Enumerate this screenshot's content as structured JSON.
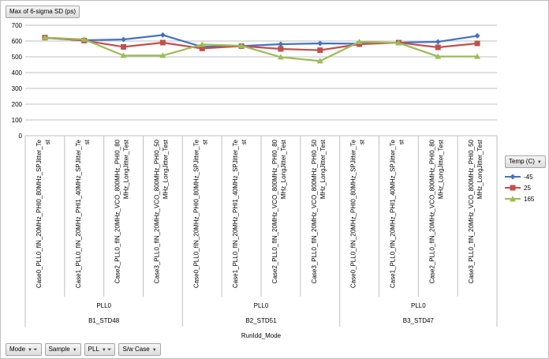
{
  "value_button": {
    "label": "Max of 6-sigma SD (ps)"
  },
  "filter_buttons": [
    {
      "label": "Mode",
      "icon": "filter-icon"
    },
    {
      "label": "Sample",
      "icon": "dropdown-icon"
    },
    {
      "label": "PLL",
      "icon": "filter-icon"
    },
    {
      "label": "S/w Case",
      "icon": "dropdown-icon"
    }
  ],
  "legend": {
    "header": "Temp (C)",
    "items": [
      {
        "name": "-45",
        "color": "#4472c4",
        "marker": "diamond"
      },
      {
        "name": "25",
        "color": "#c0504d",
        "marker": "square"
      },
      {
        "name": "165",
        "color": "#9bbb59",
        "marker": "triangle"
      }
    ]
  },
  "chart_data": {
    "type": "line",
    "ylim": [
      0,
      700
    ],
    "yticks": [
      0,
      100,
      200,
      300,
      400,
      500,
      600,
      700
    ],
    "grid": true,
    "legend_position": "right",
    "categories": [
      [
        "Case0_PLL0_fIN_20MHz_PHI0_80MHz_SPJitter_Te",
        "st"
      ],
      [
        "Case1_PLL0_fIN_20MHz_PHI1_40MHz_SPJitter_Te",
        "st"
      ],
      [
        "Case2_PLL0_fIN_20MHz_VCO_800MHz_PHI0_80",
        "MHz_LongJitter_Test"
      ],
      [
        "Case3_PLL0_fIN_20MHz_VCO_800MHz_PHI0_50",
        "MHz_LongJitter_Test"
      ],
      [
        "Case0_PLL0_fIN_20MHz_PHI0_80MHz_SPJitter_Te",
        "st"
      ],
      [
        "Case1_PLL0_fIN_20MHz_PHI1_40MHz_SPJitter_Te",
        "st"
      ],
      [
        "Case2_PLL0_fIN_20MHz_VCO_800MHz_PHI0_80",
        "MHz_LongJitter_Test"
      ],
      [
        "Case3_PLL0_fIN_20MHz_VCO_800MHz_PHI0_50",
        "MHz_LongJitter_Test"
      ],
      [
        "Case0_PLL0_fIN_20MHz_PHI0_80MHz_SPJitter_Te",
        "st"
      ],
      [
        "Case1_PLL0_fIN_20MHz_PHI1_40MHz_SPJitter_Te",
        "st"
      ],
      [
        "Case2_PLL0_fIN_20MHz_VCO_800MHz_PHI0_80",
        "MHz_LongJitter_Test"
      ],
      [
        "Case3_PLL0_fIN_20MHz_VCO_800MHz_PHI0_50",
        "MHz_LongJitter_Test"
      ]
    ],
    "pll_labels": [
      "PLL0",
      "PLL0",
      "PLL0"
    ],
    "sample_labels": [
      "B1_STD48",
      "B2_STD51",
      "B3_STD47"
    ],
    "group_size": 4,
    "outer_axis_label": "RunIdd_Mode",
    "series": [
      {
        "name": "-45",
        "values": [
          620,
          605,
          610,
          638,
          563,
          568,
          580,
          585,
          583,
          590,
          595,
          633
        ]
      },
      {
        "name": "25",
        "values": [
          622,
          603,
          563,
          590,
          553,
          568,
          550,
          542,
          580,
          590,
          560,
          585
        ]
      },
      {
        "name": "165",
        "values": [
          622,
          610,
          508,
          508,
          578,
          570,
          498,
          473,
          595,
          588,
          502,
          502
        ]
      }
    ]
  }
}
